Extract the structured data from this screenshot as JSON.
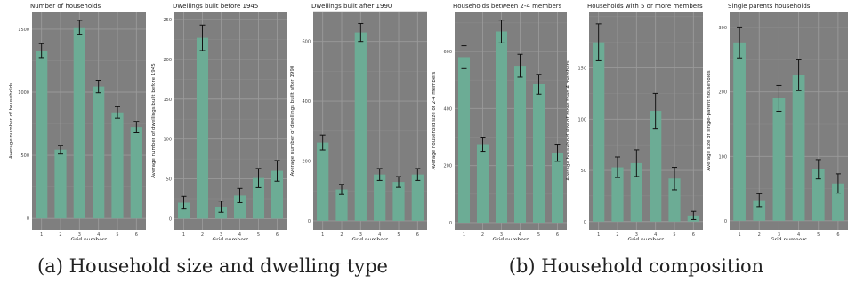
{
  "captions": {
    "a": "(a) Household size and dwelling type",
    "b": "(b) Household composition"
  },
  "chart_data": [
    {
      "type": "bar",
      "title": "Number of households",
      "xlabel": "Grid numbers",
      "ylabel": "Average number of households",
      "categories": [
        "1",
        "2",
        "3",
        "4",
        "5",
        "6"
      ],
      "values": [
        1330,
        545,
        1515,
        1045,
        840,
        725
      ],
      "errors": [
        55,
        35,
        55,
        50,
        45,
        45
      ],
      "ylim": [
        -90,
        1640
      ],
      "yticks": [
        0,
        500,
        1000,
        1500
      ],
      "grid": true
    },
    {
      "type": "bar",
      "title": "Dwellings built before 1945",
      "xlabel": "Grid numbers",
      "ylabel": "Average number of dwellings built before 1945",
      "categories": [
        "1",
        "2",
        "3",
        "4",
        "5",
        "6"
      ],
      "values": [
        20,
        227,
        15,
        29,
        51,
        60
      ],
      "errors": [
        8,
        16,
        7,
        9,
        12,
        13
      ],
      "ylim": [
        -14,
        260
      ],
      "yticks": [
        0,
        50,
        100,
        150,
        200,
        250
      ],
      "grid": true
    },
    {
      "type": "bar",
      "title": "Dwellings built after 1990",
      "xlabel": "Grid numbers",
      "ylabel": "Average number of dwellings built after 1990",
      "categories": [
        "1",
        "2",
        "3",
        "4",
        "5",
        "6"
      ],
      "values": [
        262,
        105,
        630,
        155,
        130,
        155
      ],
      "errors": [
        25,
        17,
        30,
        20,
        18,
        20
      ],
      "ylim": [
        -30,
        700
      ],
      "yticks": [
        0,
        200,
        400,
        600
      ],
      "grid": true
    },
    {
      "type": "bar",
      "title": "Households between 2-4 members",
      "xlabel": "Grid numbers",
      "ylabel": "Average household size of 2-4 members",
      "categories": [
        "1",
        "2",
        "3",
        "4",
        "5",
        "6"
      ],
      "values": [
        580,
        275,
        670,
        550,
        485,
        245
      ],
      "errors": [
        40,
        25,
        40,
        40,
        35,
        30
      ],
      "ylim": [
        -25,
        740
      ],
      "yticks": [
        0,
        200,
        400,
        600
      ],
      "grid": true
    },
    {
      "type": "bar",
      "title": "Households with 5 or more members",
      "xlabel": "Grid numbers",
      "ylabel": "Average household size of more than 4 members",
      "categories": [
        "1",
        "2",
        "3",
        "4",
        "5",
        "6"
      ],
      "values": [
        175,
        53,
        57,
        108,
        42,
        6
      ],
      "errors": [
        18,
        10,
        13,
        17,
        11,
        4
      ],
      "ylim": [
        -8,
        205
      ],
      "yticks": [
        0,
        50,
        100,
        150
      ],
      "grid": true
    },
    {
      "type": "bar",
      "title": "Single parents households",
      "xlabel": "Grid numbers",
      "ylabel": "Average size of single-parent households",
      "categories": [
        "1",
        "2",
        "3",
        "4",
        "5",
        "6"
      ],
      "values": [
        277,
        32,
        190,
        226,
        80,
        58
      ],
      "errors": [
        24,
        10,
        20,
        24,
        15,
        15
      ],
      "ylim": [
        -14,
        325
      ],
      "yticks": [
        0,
        100,
        200,
        300
      ],
      "grid": true
    }
  ],
  "colors": {
    "panel_bg": "#7f7f7f",
    "grid_major": "#9a9a9a",
    "grid_minor": "#8c8c8c",
    "bar": "#6cac95",
    "error_bar": "#111111",
    "text": "#222222",
    "tick_text": "#444444"
  }
}
